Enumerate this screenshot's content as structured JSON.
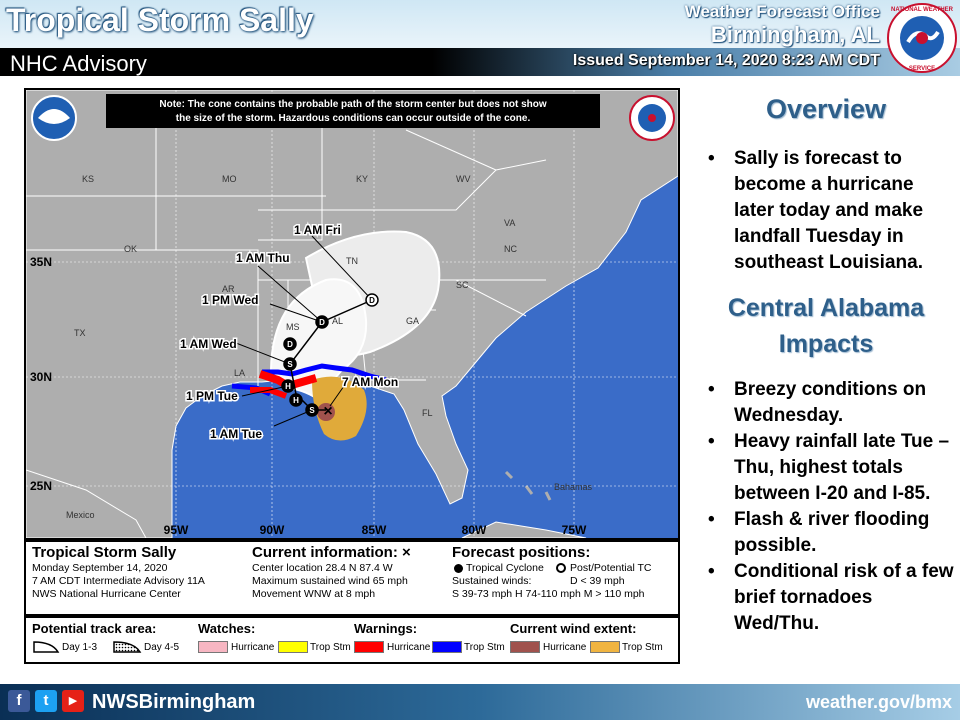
{
  "header": {
    "title": "Tropical Storm Sally",
    "subtitle": "NHC Advisory",
    "office_line1": "Weather Forecast Office",
    "office_line2": "Birmingham, AL",
    "issued": "Issued September 14, 2020 8:23 AM CDT",
    "logo_text": "NATIONAL WEATHER SERVICE"
  },
  "map": {
    "note": [
      "Note: The cone contains the probable path of the storm center but does not show",
      "the size of the storm. Hazardous conditions can occur outside of the cone."
    ],
    "states": [
      "KS",
      "MO",
      "KY",
      "WV",
      "VA",
      "OK",
      "AR",
      "TN",
      "NC",
      "SC",
      "MS",
      "AL",
      "GA",
      "TX",
      "LA",
      "FL"
    ],
    "other_labels": [
      "Mexico",
      "Bahamas"
    ],
    "lon_labels": [
      "95W",
      "90W",
      "85W",
      "80W",
      "75W"
    ],
    "lat_labels": [
      "35N",
      "30N",
      "25N"
    ],
    "forecast_times": [
      "1 AM Fri",
      "1 AM Thu",
      "1 PM Wed",
      "1 AM Wed",
      "7 AM Mon",
      "1 PM Tue",
      "1 AM Tue"
    ],
    "point_letters": [
      "D",
      "D",
      "D",
      "S",
      "H",
      "H",
      "S"
    ]
  },
  "info": {
    "storm_name": "Tropical Storm Sally",
    "date": "Monday September 14, 2020",
    "advisory": "7 AM CDT Intermediate Advisory 11A",
    "center": "NWS National Hurricane Center",
    "current_heading": "Current information: ×",
    "location": "Center location 28.4 N 87.4 W",
    "max_wind": "Maximum sustained wind 65 mph",
    "movement": "Movement WNW at 8 mph",
    "forecast_heading": "Forecast positions:",
    "tc_label": "Tropical Cyclone",
    "ptc_label": "Post/Potential TC",
    "sustained": "Sustained winds:",
    "d_range": "D < 39 mph",
    "ranges": "S 39-73 mph  H 74-110 mph  M > 110 mph"
  },
  "legend": {
    "track_heading": "Potential track area:",
    "day13": "Day 1-3",
    "day45": "Day 4-5",
    "watches_heading": "Watches:",
    "warnings_heading": "Warnings:",
    "wind_heading": "Current wind extent:",
    "hurricane": "Hurricane",
    "trop_stm": "Trop Stm",
    "colors": {
      "watch_hurricane": "#f7b6c2",
      "watch_trop": "#ffff00",
      "warn_hurricane": "#ff0000",
      "warn_trop": "#0000ff",
      "wind_hurricane": "#a0524d",
      "wind_trop": "#f0b441"
    }
  },
  "sidebar": {
    "overview_heading": "Overview",
    "overview_text": "Sally is forecast to become a hurricane later today and make landfall Tuesday in southeast Louisiana.",
    "impacts_heading_line1": "Central Alabama",
    "impacts_heading_line2": "Impacts",
    "impacts": [
      "Breezy conditions on Wednesday.",
      "Heavy rainfall late Tue – Thu, highest totals between I-20 and I-85.",
      "Flash & river flooding possible.",
      "Conditional risk of a few brief tornadoes Wed/Thu."
    ]
  },
  "footer": {
    "handle": "NWSBirmingham",
    "url": "weather.gov/bmx",
    "facebook": "f",
    "twitter": "t",
    "youtube": "▶"
  }
}
